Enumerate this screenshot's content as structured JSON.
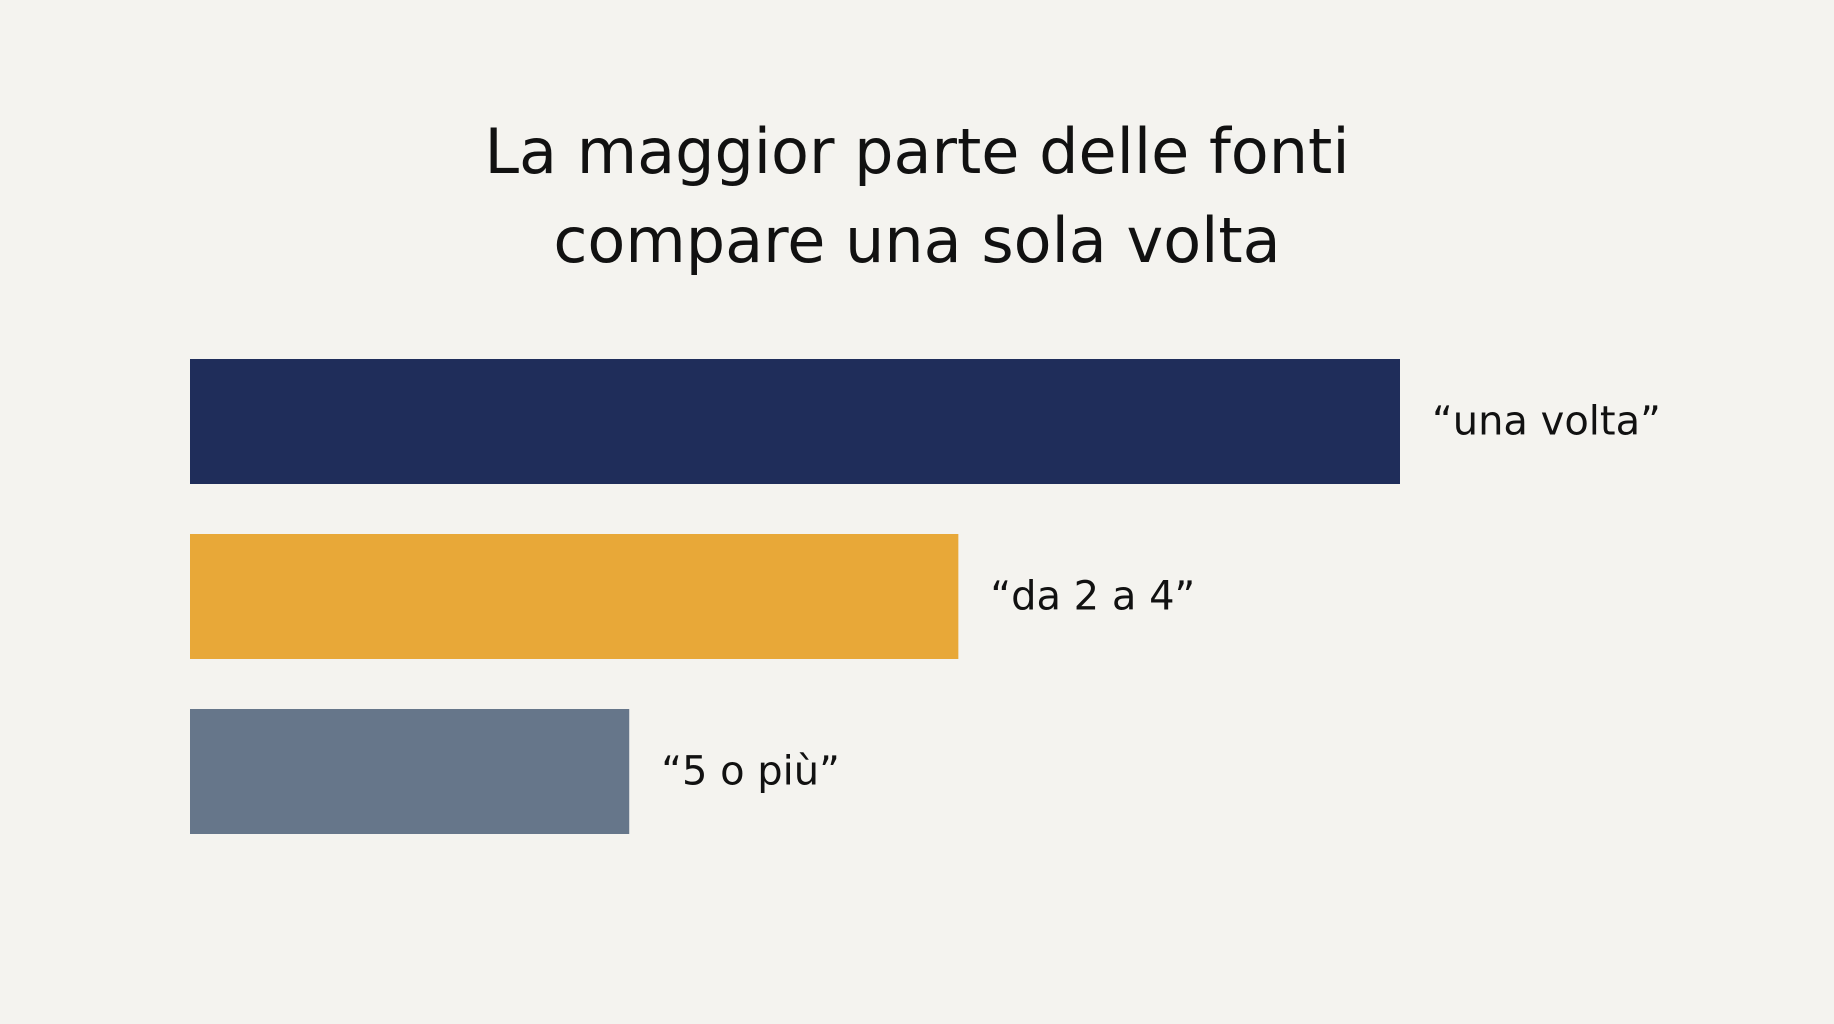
{
  "chart_data": {
    "type": "hbar",
    "title": [
      "La maggior parte delle fonti",
      "compare una sola volta"
    ],
    "categories": [
      "“una volta”",
      "“da 2 a 4”",
      "“5 o più”"
    ],
    "values": [
      100,
      63.5,
      36.3
    ],
    "colors": [
      "#1f2d5a",
      "#e8a838",
      "#66768a"
    ],
    "xlim": [
      0,
      100
    ]
  }
}
